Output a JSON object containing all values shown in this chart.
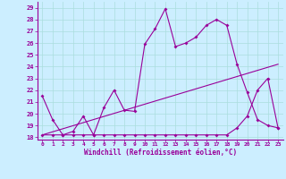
{
  "xlabel": "Windchill (Refroidissement éolien,°C)",
  "bg_color": "#cceeff",
  "line_color": "#990099",
  "xlim": [
    -0.5,
    23.5
  ],
  "ylim": [
    17.8,
    29.5
  ],
  "yticks": [
    18,
    19,
    20,
    21,
    22,
    23,
    24,
    25,
    26,
    27,
    28,
    29
  ],
  "xticks": [
    0,
    1,
    2,
    3,
    4,
    5,
    6,
    7,
    8,
    9,
    10,
    11,
    12,
    13,
    14,
    15,
    16,
    17,
    18,
    19,
    20,
    21,
    22,
    23
  ],
  "series1_x": [
    0,
    1,
    2,
    3,
    4,
    5,
    6,
    7,
    8,
    9,
    10,
    11,
    12,
    13,
    14,
    15,
    16,
    17,
    18,
    19,
    20,
    21,
    22,
    23
  ],
  "series1_y": [
    21.5,
    19.5,
    18.2,
    18.5,
    19.8,
    18.2,
    20.5,
    22.0,
    20.3,
    20.2,
    25.9,
    27.2,
    28.9,
    25.7,
    26.0,
    26.5,
    27.5,
    28.0,
    27.5,
    24.2,
    21.8,
    19.5,
    19.0,
    18.8
  ],
  "series2_x": [
    0,
    1,
    2,
    3,
    4,
    5,
    6,
    7,
    8,
    9,
    10,
    11,
    12,
    13,
    14,
    15,
    16,
    17,
    18,
    19,
    20,
    21,
    22,
    23
  ],
  "series2_y": [
    18.2,
    18.2,
    18.2,
    18.2,
    18.2,
    18.2,
    18.2,
    18.2,
    18.2,
    18.2,
    18.2,
    18.2,
    18.2,
    18.2,
    18.2,
    18.2,
    18.2,
    18.2,
    18.2,
    18.8,
    19.8,
    22.0,
    23.0,
    18.8
  ],
  "series3_x": [
    0,
    23
  ],
  "series3_y": [
    18.2,
    24.2
  ],
  "grid_color": "#aadddd"
}
